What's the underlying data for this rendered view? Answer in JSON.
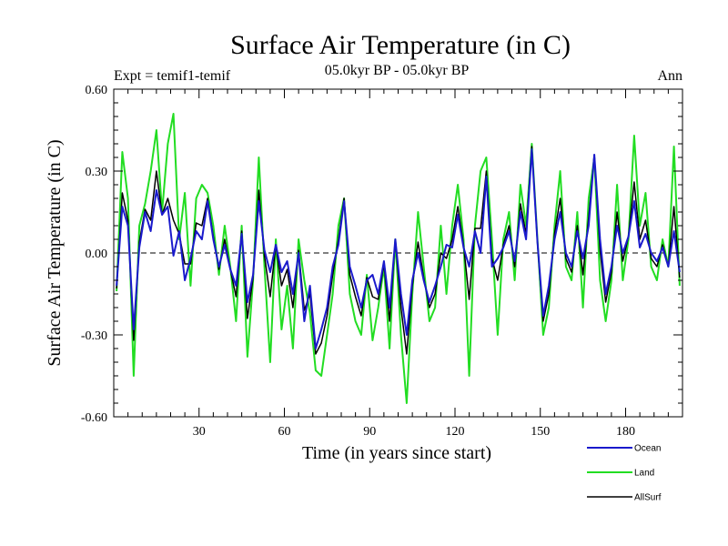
{
  "chart_data": {
    "type": "line",
    "title": "Surface Air Temperature (in C)",
    "subtitle_left": "Expt = temif1-temif",
    "subtitle_center": "05.0kyr BP - 05.0kyr BP",
    "subtitle_right": "Ann",
    "xlabel": "Time (in years since start)",
    "ylabel": "Surface Air Temperature (in C)",
    "xlim": [
      0,
      200
    ],
    "ylim": [
      -0.6,
      0.6
    ],
    "xticks": [
      30,
      60,
      90,
      120,
      150,
      180
    ],
    "xtick_labels": [
      "30",
      "60",
      "90",
      "120",
      "150",
      "180"
    ],
    "yticks": [
      -0.6,
      -0.3,
      0.0,
      0.3,
      0.6
    ],
    "ytick_labels": [
      "-0.60",
      "-0.30",
      "0.00",
      "0.30",
      "0.60"
    ],
    "reference_line": 0.0,
    "x": [
      1,
      3,
      5,
      7,
      9,
      11,
      13,
      15,
      17,
      19,
      21,
      23,
      25,
      27,
      29,
      31,
      33,
      35,
      37,
      39,
      41,
      43,
      45,
      47,
      49,
      51,
      53,
      55,
      57,
      59,
      61,
      63,
      65,
      67,
      69,
      71,
      73,
      75,
      77,
      79,
      81,
      83,
      85,
      87,
      89,
      91,
      93,
      95,
      97,
      99,
      101,
      103,
      105,
      107,
      109,
      111,
      113,
      115,
      117,
      119,
      121,
      123,
      125,
      127,
      129,
      131,
      133,
      135,
      137,
      139,
      141,
      143,
      145,
      147,
      149,
      151,
      153,
      155,
      157,
      159,
      161,
      163,
      165,
      167,
      169,
      171,
      173,
      175,
      177,
      179,
      181,
      183,
      185,
      187,
      189,
      191,
      193,
      195,
      197,
      199
    ],
    "series": [
      {
        "name": "Ocean",
        "color": "#1a1acc",
        "values": [
          -0.12,
          0.17,
          0.1,
          -0.28,
          0.02,
          0.15,
          0.08,
          0.23,
          0.14,
          0.17,
          -0.01,
          0.08,
          -0.1,
          -0.02,
          0.08,
          0.05,
          0.19,
          0.05,
          -0.05,
          0.03,
          -0.06,
          -0.12,
          0.07,
          -0.18,
          -0.08,
          0.19,
          0.01,
          -0.07,
          0.03,
          -0.07,
          -0.03,
          -0.15,
          0.0,
          -0.25,
          -0.12,
          -0.35,
          -0.28,
          -0.2,
          -0.05,
          0.03,
          0.19,
          -0.05,
          -0.12,
          -0.2,
          -0.1,
          -0.08,
          -0.15,
          -0.03,
          -0.2,
          0.05,
          -0.15,
          -0.3,
          -0.1,
          0.0,
          -0.1,
          -0.18,
          -0.12,
          -0.05,
          0.03,
          0.02,
          0.14,
          0.02,
          -0.05,
          0.08,
          0.0,
          0.28,
          -0.05,
          -0.02,
          0.02,
          0.08,
          -0.03,
          0.15,
          0.05,
          0.38,
          0.04,
          -0.23,
          -0.12,
          0.05,
          0.15,
          0.0,
          -0.05,
          0.08,
          -0.02,
          0.1,
          0.36,
          0.05,
          -0.15,
          -0.05,
          0.1,
          0.0,
          0.06,
          0.19,
          0.02,
          0.07,
          0.0,
          -0.03,
          0.02,
          -0.05,
          0.08,
          -0.07
        ]
      },
      {
        "name": "Land",
        "color": "#22dd22",
        "values": [
          -0.14,
          0.37,
          0.2,
          -0.45,
          0.1,
          0.18,
          0.3,
          0.45,
          0.15,
          0.4,
          0.51,
          0.05,
          0.22,
          -0.12,
          0.2,
          0.25,
          0.22,
          0.1,
          -0.08,
          0.1,
          -0.05,
          -0.25,
          0.1,
          -0.38,
          -0.1,
          0.35,
          -0.05,
          -0.4,
          0.05,
          -0.28,
          -0.12,
          -0.35,
          0.05,
          -0.1,
          -0.22,
          -0.43,
          -0.45,
          -0.3,
          -0.15,
          0.1,
          0.2,
          -0.15,
          -0.25,
          -0.3,
          -0.08,
          -0.32,
          -0.2,
          -0.05,
          -0.35,
          0.05,
          -0.3,
          -0.55,
          -0.15,
          0.15,
          -0.05,
          -0.25,
          -0.2,
          0.1,
          -0.15,
          0.1,
          0.25,
          0.05,
          -0.45,
          0.1,
          0.3,
          0.35,
          0.05,
          -0.3,
          0.05,
          0.15,
          -0.1,
          0.25,
          0.1,
          0.4,
          0.05,
          -0.3,
          -0.2,
          0.1,
          0.3,
          -0.05,
          -0.1,
          0.15,
          -0.2,
          0.2,
          0.35,
          -0.1,
          -0.25,
          -0.1,
          0.25,
          -0.1,
          0.05,
          0.43,
          0.1,
          0.22,
          -0.05,
          -0.1,
          0.05,
          -0.05,
          0.39,
          -0.12
        ]
      },
      {
        "name": "AllSurf",
        "color": "#000000",
        "values": [
          -0.13,
          0.22,
          0.12,
          -0.32,
          0.04,
          0.16,
          0.12,
          0.3,
          0.14,
          0.2,
          0.12,
          0.07,
          -0.04,
          -0.04,
          0.11,
          0.1,
          0.2,
          0.06,
          -0.06,
          0.05,
          -0.06,
          -0.16,
          0.08,
          -0.24,
          -0.09,
          0.23,
          -0.01,
          -0.16,
          0.03,
          -0.12,
          -0.06,
          -0.2,
          0.01,
          -0.21,
          -0.15,
          -0.37,
          -0.33,
          -0.23,
          -0.08,
          0.05,
          0.2,
          -0.08,
          -0.16,
          -0.23,
          -0.09,
          -0.16,
          -0.17,
          -0.04,
          -0.25,
          0.05,
          -0.2,
          -0.37,
          -0.12,
          0.04,
          -0.09,
          -0.2,
          -0.15,
          0.0,
          -0.02,
          0.05,
          0.17,
          0.03,
          -0.17,
          0.09,
          0.09,
          0.3,
          -0.02,
          -0.1,
          0.03,
          0.1,
          -0.05,
          0.18,
          0.07,
          0.39,
          0.04,
          -0.25,
          -0.15,
          0.07,
          0.2,
          -0.02,
          -0.07,
          0.1,
          -0.08,
          0.13,
          0.36,
          0.01,
          -0.18,
          -0.07,
          0.15,
          -0.03,
          0.06,
          0.26,
          0.05,
          0.12,
          -0.02,
          -0.05,
          0.03,
          -0.05,
          0.17,
          -0.09
        ]
      }
    ],
    "legend": [
      "Ocean",
      "Land",
      "AllSurf"
    ],
    "legend_position": "bottom-right",
    "grid": false
  }
}
